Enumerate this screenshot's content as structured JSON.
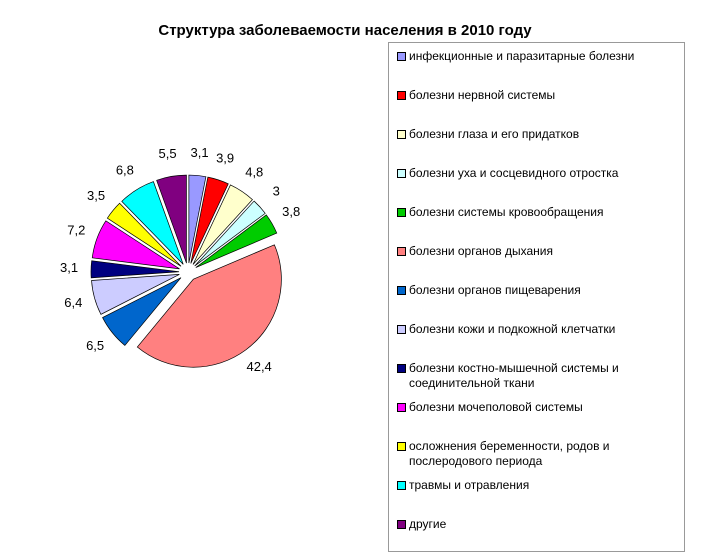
{
  "chart_data": {
    "type": "pie",
    "title": "Структура заболеваемости населения в 2010 году",
    "categories": [
      "инфекционные и паразитарные болезни",
      "болезни нервной системы",
      "болезни глаза и его придатков",
      "болезни уха и сосцевидного отростка",
      "болезни системы кровообращения",
      "болезни органов дыхания",
      "болезни органов пищеварения",
      "болезни кожи и подкожной клетчатки",
      "болезни костно-мышечной системы и соединительной ткани",
      "болезни мочеполовой системы",
      "осложнения беременности, родов и послеродового периода",
      "травмы и отравления",
      "другие"
    ],
    "values": [
      3.1,
      3.9,
      4.8,
      3,
      3.8,
      42.4,
      6.5,
      6.4,
      3.1,
      7.2,
      3.5,
      6.8,
      5.5
    ],
    "value_labels": [
      "3,1",
      "3,9",
      "4,8",
      "3",
      "3,8",
      "42,4",
      "6,5",
      "6,4",
      "3,1",
      "7,2",
      "3,5",
      "6,8",
      "5,5"
    ],
    "colors": [
      "#9999ff",
      "#ff0000",
      "#ffffcc",
      "#ccffff",
      "#00cc00",
      "#ff8080",
      "#0066cc",
      "#ccccff",
      "#000080",
      "#ff00ff",
      "#ffff00",
      "#00ffff",
      "#800080"
    ],
    "legend": "right"
  }
}
